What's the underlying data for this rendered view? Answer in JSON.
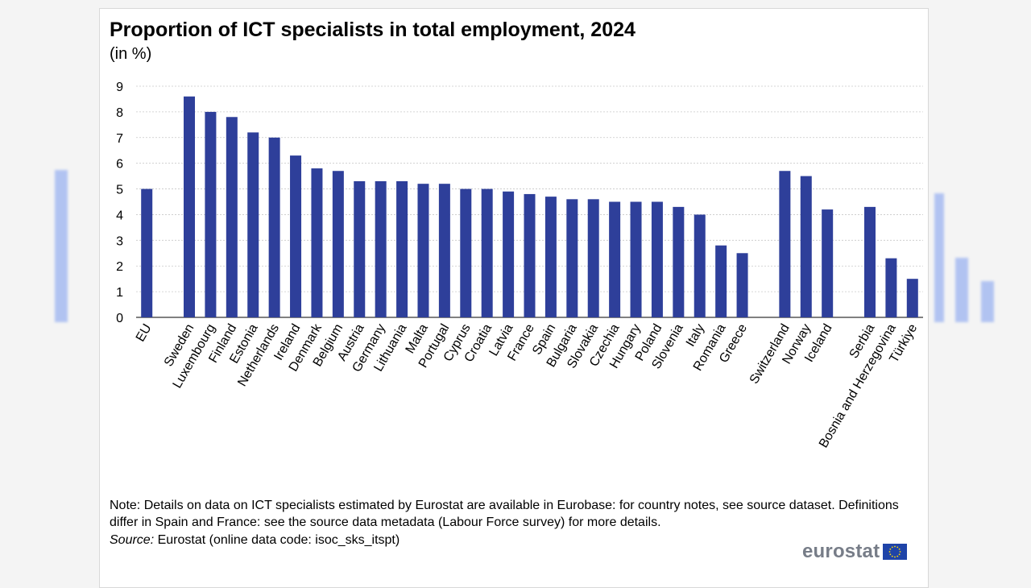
{
  "chart_data": {
    "type": "bar",
    "title": "Proportion of ICT specialists in total employment, 2024",
    "subtitle": "(in %)",
    "ylim": [
      0,
      9
    ],
    "yticks": [
      0,
      1,
      2,
      3,
      4,
      5,
      6,
      7,
      8,
      9
    ],
    "grid": true,
    "bar_color": "#2e3f9a",
    "categories": [
      "EU",
      "Sweden",
      "Luxembourg",
      "Finland",
      "Estonia",
      "Netherlands",
      "Ireland",
      "Denmark",
      "Belgium",
      "Austria",
      "Germany",
      "Lithuania",
      "Malta",
      "Portugal",
      "Cyprus",
      "Croatia",
      "Latvia",
      "France",
      "Spain",
      "Bulgaria",
      "Slovakia",
      "Czechia",
      "Hungary",
      "Poland",
      "Slovenia",
      "Italy",
      "Romania",
      "Greece",
      "Switzerland",
      "Norway",
      "Iceland",
      "Serbia",
      "Bosnia and Herzegovina",
      "Türkiye"
    ],
    "values": [
      5.0,
      8.6,
      8.0,
      7.8,
      7.2,
      7.0,
      6.3,
      5.8,
      5.7,
      5.3,
      5.3,
      5.3,
      5.2,
      5.2,
      5.0,
      5.0,
      4.9,
      4.8,
      4.7,
      4.6,
      4.6,
      4.5,
      4.5,
      4.5,
      4.3,
      4.0,
      2.8,
      2.5,
      5.7,
      5.5,
      4.2,
      4.3,
      2.3,
      1.5
    ],
    "slots": [
      0,
      2,
      3,
      4,
      5,
      6,
      7,
      8,
      9,
      10,
      11,
      12,
      13,
      14,
      15,
      16,
      17,
      18,
      19,
      20,
      21,
      22,
      23,
      24,
      25,
      26,
      27,
      28,
      30,
      31,
      32,
      34,
      35,
      36
    ],
    "slot_count": 37
  },
  "note": "Note: Details on data on ICT specialists estimated by Eurostat are available in Eurobase: for country notes, see source dataset. Definitions differ in Spain and France: see the source data metadata (Labour Force survey) for more details.",
  "source_label": "Source:",
  "source_text": " Eurostat (online data code: isoc_sks_itspt)",
  "logo_text": "eurostat",
  "bg_bar_values": [
    5.9,
    5.0,
    2.5,
    1.6
  ],
  "colors": {
    "accent": "#2e3f9a",
    "grid": "#c8c8c8",
    "logo": "#777d88",
    "flag": "#1f44a8",
    "star": "#ffdd00"
  }
}
